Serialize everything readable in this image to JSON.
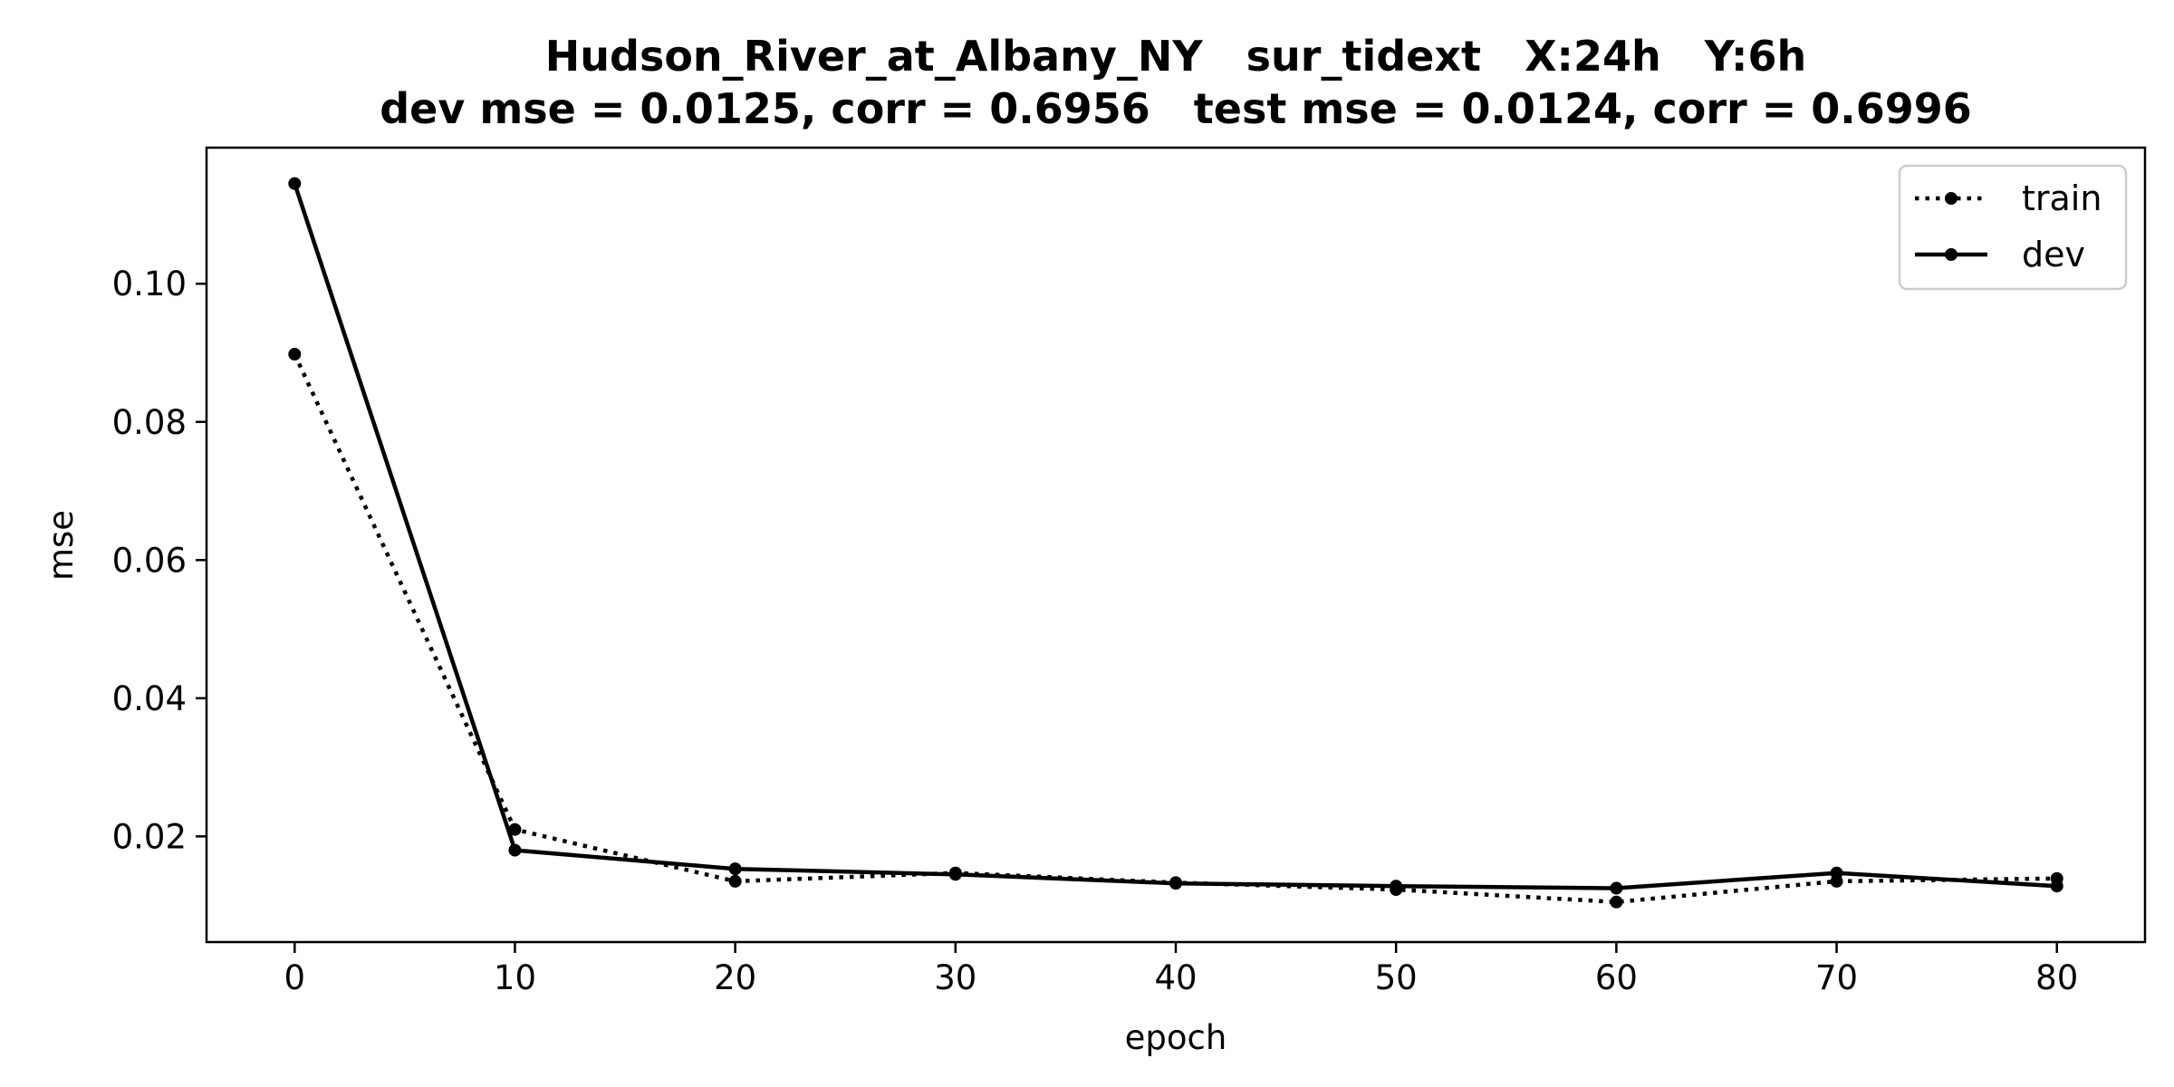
{
  "chart_data": {
    "type": "line",
    "title": "Hudson_River_at_Albany_NY   sur_tidext   X:24h   Y:6h",
    "subtitle": "dev mse = 0.0125, corr = 0.6956   test mse = 0.0124, corr = 0.6996",
    "xlabel": "epoch",
    "ylabel": "mse",
    "xlim": [
      -4,
      84
    ],
    "ylim": [
      0.0047,
      0.1197
    ],
    "xticks": [
      0,
      10,
      20,
      30,
      40,
      50,
      60,
      70,
      80
    ],
    "yticks": [
      0.02,
      0.04,
      0.06,
      0.08,
      0.1
    ],
    "ytick_labels": [
      "0.02",
      "0.04",
      "0.06",
      "0.08",
      "0.10"
    ],
    "grid": false,
    "legend_position": "top-right",
    "x": [
      0,
      10,
      20,
      30,
      40,
      50,
      60,
      70,
      80
    ],
    "series": [
      {
        "name": "train",
        "style": "dotted",
        "color": "#000000",
        "values": [
          0.0898,
          0.021,
          0.0135,
          0.0147,
          0.0133,
          0.0123,
          0.0105,
          0.0135,
          0.0139
        ]
      },
      {
        "name": "dev",
        "style": "solid",
        "color": "#000000",
        "values": [
          0.1145,
          0.018,
          0.0153,
          0.0145,
          0.0132,
          0.0128,
          0.0125,
          0.0147,
          0.0128
        ]
      }
    ]
  }
}
